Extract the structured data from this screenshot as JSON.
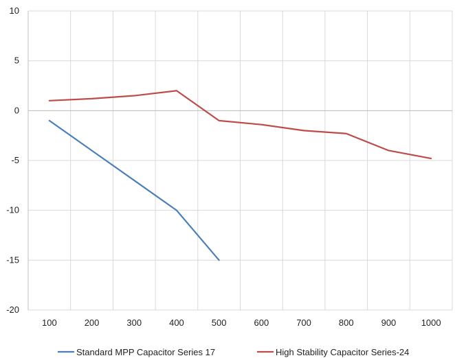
{
  "chart_data": {
    "type": "line",
    "x": [
      100,
      200,
      300,
      400,
      500,
      600,
      700,
      800,
      900,
      1000
    ],
    "x_tick_labels": [
      "100",
      "200",
      "300",
      "400",
      "500",
      "600",
      "700",
      "800",
      "900",
      "1000"
    ],
    "ylim": [
      -20,
      10
    ],
    "y_ticks": [
      10,
      5,
      0,
      -5,
      -10,
      -15,
      -20
    ],
    "y_tick_labels": [
      "10",
      "5",
      "0",
      "-5",
      "-10",
      "-15",
      "-20"
    ],
    "grid": true,
    "legend_position": "bottom",
    "series": [
      {
        "name": "Standard MPP Capacitor Series 17",
        "color": "#4a7ebb",
        "x": [
          100,
          200,
          300,
          400,
          500
        ],
        "values": [
          -1,
          -4,
          -7,
          -10,
          -15
        ]
      },
      {
        "name": "High Stability Capacitor   Series-24",
        "color": "#be4b48",
        "x": [
          100,
          200,
          300,
          400,
          500,
          600,
          700,
          800,
          900,
          1000
        ],
        "values": [
          1,
          1.2,
          1.5,
          2,
          -1,
          -1.4,
          -2,
          -2.3,
          -4,
          -4.8
        ]
      }
    ]
  }
}
